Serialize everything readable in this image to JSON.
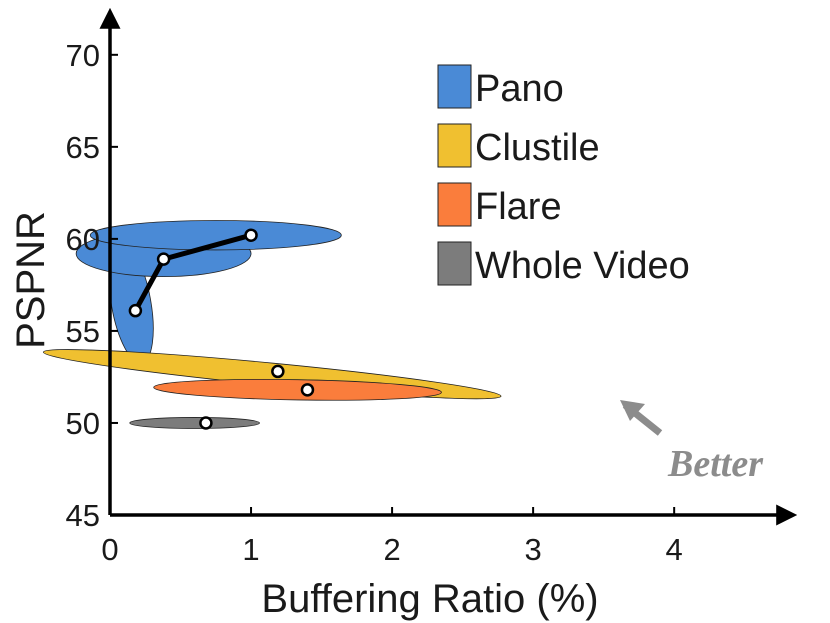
{
  "chart_data": {
    "type": "scatter",
    "xlabel": "Buffering Ratio (%)",
    "ylabel": "PSPNR",
    "xlim": [
      0,
      4.8
    ],
    "ylim": [
      45,
      72
    ],
    "x_ticks": [
      "0",
      "1",
      "2",
      "3",
      "4"
    ],
    "y_ticks": [
      "45",
      "50",
      "55",
      "60",
      "65",
      "70"
    ],
    "grid": false,
    "legend_position": "top-right",
    "legend": [
      {
        "name": "Pano",
        "color": "#4a8ad6"
      },
      {
        "name": "Clustile",
        "color": "#f0c030"
      },
      {
        "name": "Flare",
        "color": "#fa7d3c"
      },
      {
        "name": "Whole Video",
        "color": "#7c7c7c"
      }
    ],
    "series": [
      {
        "legend_index": 0,
        "line": true,
        "points": [
          {
            "x": 0.18,
            "y": 56.1
          },
          {
            "x": 0.38,
            "y": 58.9
          },
          {
            "x": 1.0,
            "y": 60.2
          }
        ],
        "ellipses": [
          {
            "cx": 0.15,
            "cy": 56.5,
            "rx": 0.14,
            "ry": 3.3,
            "rotation": -10
          },
          {
            "cx": 0.38,
            "cy": 59.2,
            "rx": 0.62,
            "ry": 1.25,
            "rotation": 0
          },
          {
            "cx": 0.75,
            "cy": 60.2,
            "rx": 0.89,
            "ry": 0.8,
            "rotation": 0
          }
        ]
      },
      {
        "legend_index": 1,
        "line": false,
        "points": [
          {
            "x": 1.19,
            "y": 52.8
          }
        ],
        "ellipses": [
          {
            "cx": 1.15,
            "cy": 52.65,
            "rx": 1.63,
            "ry": 0.6,
            "rotation": 5.5
          }
        ]
      },
      {
        "legend_index": 2,
        "line": false,
        "points": [
          {
            "x": 1.4,
            "y": 51.8
          }
        ],
        "ellipses": [
          {
            "cx": 1.33,
            "cy": 51.8,
            "rx": 1.02,
            "ry": 0.55,
            "rotation": 1
          }
        ]
      },
      {
        "legend_index": 3,
        "line": false,
        "points": [
          {
            "x": 0.68,
            "y": 50.0
          }
        ],
        "ellipses": [
          {
            "cx": 0.6,
            "cy": 50.0,
            "rx": 0.46,
            "ry": 0.3,
            "rotation": 0
          }
        ]
      }
    ],
    "annotation": {
      "text": "Better",
      "arrow_direction": "upper-left"
    }
  }
}
